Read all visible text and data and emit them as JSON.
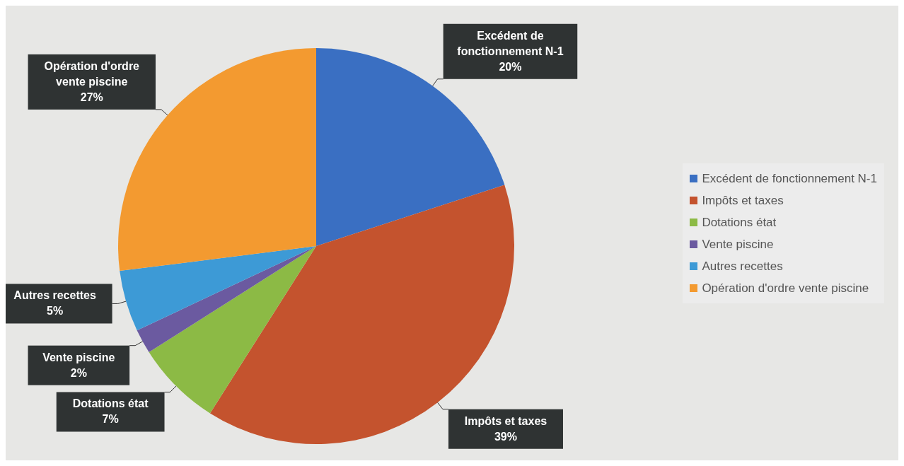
{
  "chart_data": {
    "type": "pie",
    "categories": [
      "Excédent de fonctionnement N-1",
      "Impôts et taxes",
      "Dotations état",
      "Vente piscine",
      "Autres recettes",
      "Opération d'ordre vente piscine"
    ],
    "values": [
      20,
      39,
      7,
      2,
      5,
      27
    ],
    "value_labels": [
      "20%",
      "39%",
      "7%",
      "2%",
      "5%",
      "27%"
    ],
    "colors": [
      "#3a6fc2",
      "#c4532e",
      "#8cba45",
      "#6b5aa0",
      "#3d9ad6",
      "#f39a30"
    ],
    "legend": "right"
  }
}
